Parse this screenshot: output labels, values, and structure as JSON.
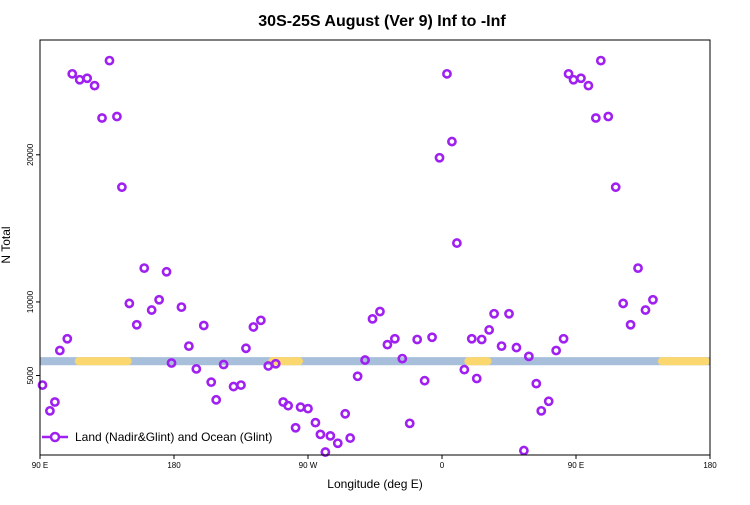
{
  "chart_data": {
    "type": "scatter",
    "title": "30S-25S August (Ver 9)   Inf to -Inf",
    "xlabel": "Longitude (deg E)",
    "ylabel": "N Total",
    "xlim": [
      -90,
      180
    ],
    "ylim": [
      -400,
      27800
    ],
    "x_ticks": [
      {
        "value": -90,
        "label": "90 E"
      },
      {
        "value": -36,
        "label": "180"
      },
      {
        "value": 18,
        "label": "90 W"
      },
      {
        "value": 72,
        "label": "0"
      },
      {
        "value": 126,
        "label": "90 E"
      },
      {
        "value": 180,
        "label": "180"
      }
    ],
    "y_ticks": [
      {
        "value": 5000,
        "label": "5000"
      },
      {
        "value": 10000,
        "label": "10000"
      },
      {
        "value": 20000,
        "label": "20000"
      }
    ],
    "grid": false,
    "legend_position": "bottom-left",
    "marker_color": "#a020f0",
    "band": {
      "y_range": [
        5700,
        6250
      ],
      "base_color": "#a7bfdb",
      "highlight_color": "#fbd76f",
      "highlights_x": [
        [
          -76,
          -53
        ],
        [
          2,
          16
        ],
        [
          81,
          92
        ],
        [
          159,
          183
        ]
      ]
    },
    "series": [
      {
        "name": "Land (Nadir&Glint) and Ocean (Glint)",
        "points": [
          [
            -89,
            4350
          ],
          [
            -86,
            2600
          ],
          [
            -84,
            3200
          ],
          [
            -82,
            6700
          ],
          [
            -79,
            7500
          ],
          [
            -77,
            25500
          ],
          [
            -74,
            25100
          ],
          [
            -71,
            25200
          ],
          [
            -68,
            24700
          ],
          [
            -65,
            22500
          ],
          [
            -62,
            26400
          ],
          [
            -59,
            22600
          ],
          [
            -57,
            17800
          ],
          [
            -54,
            9900
          ],
          [
            -51,
            8450
          ],
          [
            -48,
            12300
          ],
          [
            -45,
            9450
          ],
          [
            -42,
            10150
          ],
          [
            -39,
            12050
          ],
          [
            -37,
            5850
          ],
          [
            -33,
            9650
          ],
          [
            -30,
            7000
          ],
          [
            -27,
            5450
          ],
          [
            -24,
            8400
          ],
          [
            -21,
            4550
          ],
          [
            -19,
            3350
          ],
          [
            -16,
            5750
          ],
          [
            -12,
            4250
          ],
          [
            -9,
            4350
          ],
          [
            -7,
            6850
          ],
          [
            -4,
            8300
          ],
          [
            -1,
            8750
          ],
          [
            2,
            5650
          ],
          [
            5,
            5800
          ],
          [
            8,
            3200
          ],
          [
            10,
            2950
          ],
          [
            13,
            1450
          ],
          [
            15,
            2850
          ],
          [
            18,
            2750
          ],
          [
            21,
            1800
          ],
          [
            23,
            1000
          ],
          [
            25,
            -200
          ],
          [
            27,
            900
          ],
          [
            30,
            400
          ],
          [
            33,
            2400
          ],
          [
            35,
            750
          ],
          [
            38,
            4950
          ],
          [
            41,
            6050
          ],
          [
            44,
            8850
          ],
          [
            47,
            9350
          ],
          [
            50,
            7100
          ],
          [
            53,
            7500
          ],
          [
            56,
            6150
          ],
          [
            59,
            1750
          ],
          [
            62,
            7450
          ],
          [
            65,
            4650
          ],
          [
            68,
            7600
          ],
          [
            71,
            19800
          ],
          [
            74,
            25500
          ],
          [
            76,
            20900
          ],
          [
            78,
            14000
          ],
          [
            81,
            5400
          ],
          [
            84,
            7500
          ],
          [
            86,
            4800
          ],
          [
            88,
            7450
          ],
          [
            91,
            8100
          ],
          [
            93,
            9200
          ],
          [
            96,
            7000
          ],
          [
            99,
            9200
          ],
          [
            102,
            6900
          ],
          [
            105,
            -100
          ],
          [
            107,
            6300
          ],
          [
            110,
            4450
          ],
          [
            112,
            2600
          ],
          [
            115,
            3250
          ],
          [
            118,
            6700
          ],
          [
            121,
            7500
          ],
          [
            123,
            25500
          ],
          [
            125,
            25100
          ],
          [
            128,
            25200
          ],
          [
            131,
            24700
          ],
          [
            134,
            22500
          ],
          [
            136,
            26400
          ],
          [
            139,
            22600
          ],
          [
            142,
            17800
          ],
          [
            145,
            9900
          ],
          [
            148,
            8450
          ],
          [
            151,
            12300
          ],
          [
            154,
            9450
          ],
          [
            157,
            10150
          ]
        ]
      }
    ]
  }
}
